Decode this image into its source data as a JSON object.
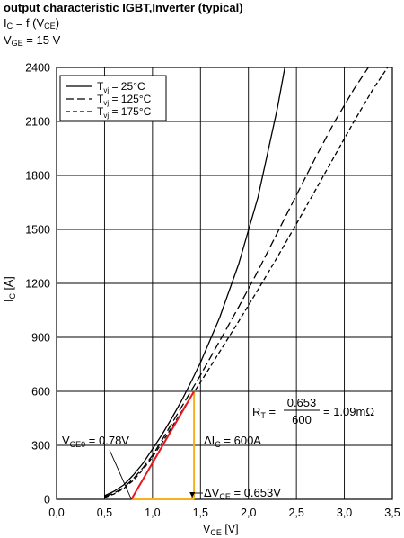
{
  "header": {
    "title": "output characteristic IGBT,Inverter (typical)",
    "line2": {
      "main": "I",
      "sub": "C",
      "rest_pre": " = f (V",
      "rest_sub": "CE",
      "rest_post": ")"
    },
    "line3": {
      "main": "V",
      "sub": "GE",
      "rest": " = 15 V"
    }
  },
  "chart_data": {
    "type": "line",
    "title": "output characteristic IGBT,Inverter (typical)",
    "xlabel": {
      "main": "V",
      "sub": "CE",
      "unit": " [V]"
    },
    "ylabel": {
      "main": "I",
      "sub": "C",
      "unit": " [A]"
    },
    "xlim": [
      0,
      3.5
    ],
    "ylim": [
      0,
      2400
    ],
    "xticks": [
      0,
      0.5,
      1,
      1.5,
      2,
      2.5,
      3,
      3.5
    ],
    "xtick_labels": [
      "0,0",
      "0,5",
      "1,0",
      "1,5",
      "2,0",
      "2,5",
      "3,0",
      "3,5"
    ],
    "yticks": [
      0,
      300,
      600,
      900,
      1200,
      1500,
      1800,
      2100,
      2400
    ],
    "ytick_labels": [
      "0",
      "300",
      "600",
      "900",
      "1200",
      "1500",
      "1800",
      "2100",
      "2400"
    ],
    "grid": true,
    "legend_position": "top-left",
    "series": [
      {
        "name_main": "T",
        "name_sub": "vj",
        "name_rest": " = 25°C",
        "dash": "solid",
        "x": [
          0.5,
          0.6,
          0.7,
          0.8,
          0.9,
          1.0,
          1.1,
          1.2,
          1.3,
          1.4,
          1.5,
          1.7,
          1.9,
          2.1,
          2.3,
          2.38
        ],
        "y": [
          20,
          45,
          80,
          135,
          200,
          280,
          360,
          450,
          545,
          650,
          760,
          1010,
          1310,
          1680,
          2170,
          2400
        ]
      },
      {
        "name_main": "T",
        "name_sub": "vj",
        "name_rest": " = 125°C",
        "dash": "dash",
        "x": [
          0.5,
          0.6,
          0.7,
          0.8,
          0.9,
          1.0,
          1.1,
          1.2,
          1.3,
          1.4,
          1.5,
          1.7,
          1.9,
          2.1,
          2.3,
          2.5,
          2.7,
          2.9,
          3.1,
          3.25
        ],
        "y": [
          15,
          35,
          65,
          115,
          175,
          245,
          330,
          420,
          510,
          600,
          690,
          880,
          1070,
          1270,
          1480,
          1690,
          1900,
          2100,
          2280,
          2400
        ]
      },
      {
        "name_main": "T",
        "name_sub": "vj",
        "name_rest": " = 175°C",
        "dash": "dashdot",
        "x": [
          0.5,
          0.6,
          0.7,
          0.8,
          0.9,
          1.0,
          1.1,
          1.2,
          1.3,
          1.4,
          1.5,
          1.7,
          1.9,
          2.1,
          2.3,
          2.5,
          2.7,
          2.9,
          3.1,
          3.3,
          3.45
        ],
        "y": [
          10,
          30,
          60,
          105,
          165,
          235,
          315,
          400,
          485,
          570,
          650,
          820,
          990,
          1165,
          1345,
          1530,
          1720,
          1910,
          2100,
          2280,
          2400
        ]
      }
    ],
    "annotations": {
      "red_line": {
        "x": [
          0.78,
          1.433
        ],
        "y": [
          0,
          600
        ],
        "color": "#e8161d"
      },
      "yellow_lines": {
        "vertical": {
          "x": 1.433,
          "y": [
            0,
            600
          ]
        },
        "horizontal": {
          "y": 0,
          "x": [
            0.78,
            1.433
          ]
        },
        "color": "#f5b21a"
      },
      "vce0": {
        "main": "V",
        "sub": "CE0",
        "rest": " = 0.78V"
      },
      "delta_ic": {
        "main": "ΔI",
        "sub": "C",
        "rest": "  = 600A"
      },
      "delta_vce": {
        "main": "ΔV",
        "sub": "CE",
        "rest": " = 0.653V"
      },
      "rt": {
        "main": "R",
        "sub": "T",
        "eq": " = ",
        "numerator": "0.653",
        "denominator": "600",
        "result": "= 1.09m",
        "unit_glyph": "Ω"
      }
    }
  }
}
